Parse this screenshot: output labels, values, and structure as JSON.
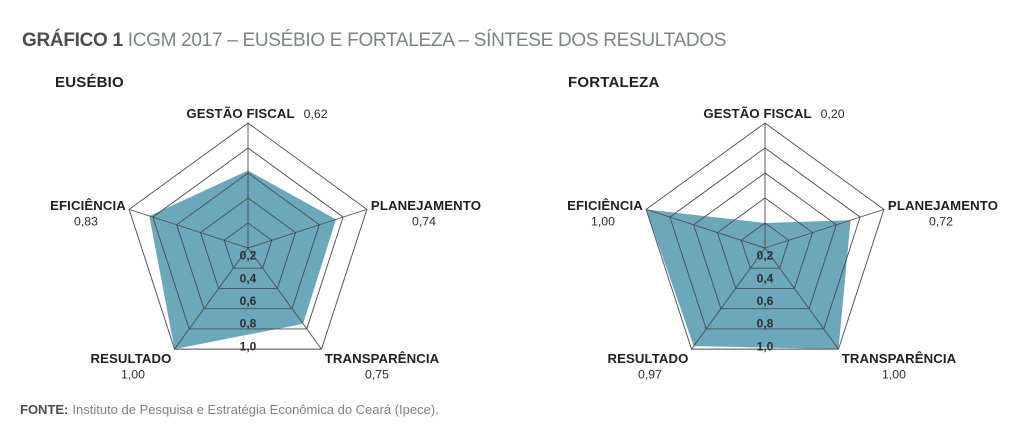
{
  "header": {
    "prefix": "GRÁFICO 1",
    "title": "ICGM 2017 – EUSÉBIO E FORTALEZA – SÍNTESE DOS RESULTADOS"
  },
  "footer": {
    "label": "FONTE:",
    "text": "Instituto de Pesquisa e Estratégia Econômica do Ceará (Ipece)."
  },
  "colors": {
    "background": "#fefefe",
    "fill": "#6CA8BB",
    "grid": "#4c4c4e",
    "label": "#231f20",
    "value": "#2e2d2c",
    "title_prefix": "#4d4d4f",
    "title_rest": "#808285"
  },
  "chart_data": [
    {
      "type": "radar",
      "title": "EUSÉBIO",
      "axes": [
        "GESTÃO FISCAL",
        "PLANEJAMENTO",
        "TRANSPARÊNCIA",
        "RESULTADO",
        "EFICIÊNCIA"
      ],
      "values": [
        0.62,
        0.74,
        0.75,
        1.0,
        0.83
      ],
      "value_labels": [
        "0,62",
        "0,74",
        "0,75",
        "1,00",
        "0,83"
      ],
      "ring_values": [
        0.2,
        0.4,
        0.6,
        0.8,
        1.0
      ],
      "ring_labels": [
        "0,2",
        "0,4",
        "0,6",
        "0,8",
        "1,0"
      ],
      "range": [
        0,
        1
      ],
      "grid_shape": "pentagon",
      "legend": "none"
    },
    {
      "type": "radar",
      "title": "FORTALEZA",
      "axes": [
        "GESTÃO FISCAL",
        "PLANEJAMENTO",
        "TRANSPARÊNCIA",
        "RESULTADO",
        "EFICIÊNCIA"
      ],
      "values": [
        0.2,
        0.72,
        1.0,
        0.97,
        1.0
      ],
      "value_labels": [
        "0,20",
        "0,72",
        "1,00",
        "0,97",
        "1,00"
      ],
      "ring_values": [
        0.2,
        0.4,
        0.6,
        0.8,
        1.0
      ],
      "ring_labels": [
        "0,2",
        "0,4",
        "0,6",
        "0,8",
        "1,0"
      ],
      "range": [
        0,
        1
      ],
      "grid_shape": "pentagon",
      "legend": "none"
    }
  ]
}
